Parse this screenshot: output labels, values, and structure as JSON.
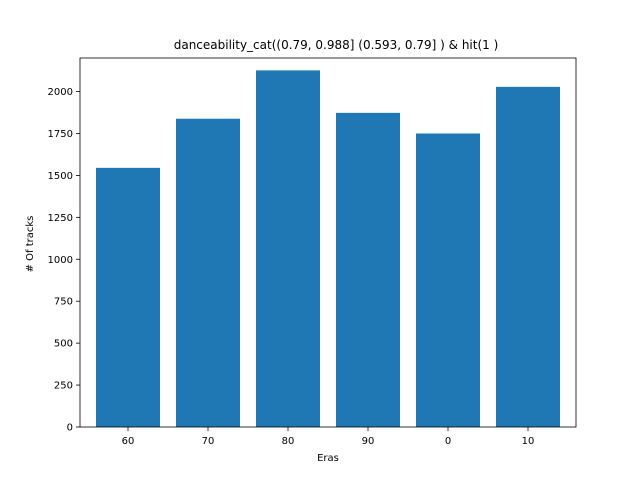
{
  "chart_data": {
    "type": "bar",
    "title": "danceability_cat((0.79, 0.988] (0.593, 0.79] ) & hit(1 )",
    "xlabel": "Eras",
    "ylabel": "# Of tracks",
    "categories": [
      "60",
      "70",
      "80",
      "90",
      "0",
      "10"
    ],
    "values": [
      1545,
      1838,
      2126,
      1873,
      1750,
      2028
    ],
    "ylim": [
      0,
      2200
    ],
    "yticks": [
      0,
      250,
      500,
      750,
      1000,
      1250,
      1500,
      1750,
      2000
    ],
    "bar_color": "#1f77b4",
    "grid": false,
    "legend": false
  }
}
